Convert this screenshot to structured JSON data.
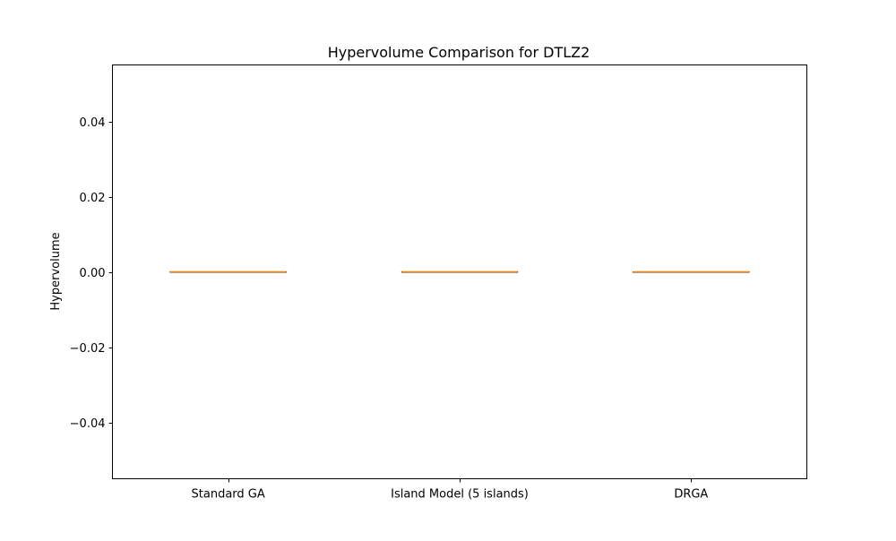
{
  "chart_data": {
    "type": "box",
    "title": "Hypervolume Comparison for DTLZ2",
    "xlabel": "",
    "ylabel": "Hypervolume",
    "ylim": [
      -0.055,
      0.055
    ],
    "yticks": [
      -0.04,
      -0.02,
      0.0,
      0.02,
      0.04
    ],
    "ytick_labels": [
      "−0.04",
      "−0.02",
      "0.00",
      "0.02",
      "0.04"
    ],
    "categories": [
      "Standard GA",
      "Island Model (5 islands)",
      "DRGA"
    ],
    "boxes": [
      {
        "category": "Standard GA",
        "min": 0.0,
        "q1": 0.0,
        "median": 0.0,
        "q3": 0.0,
        "max": 0.0
      },
      {
        "category": "Island Model (5 islands)",
        "min": 0.0,
        "q1": 0.0,
        "median": 0.0,
        "q3": 0.0,
        "max": 0.0
      },
      {
        "category": "DRGA",
        "min": 0.0,
        "q1": 0.0,
        "median": 0.0,
        "q3": 0.0,
        "max": 0.0
      }
    ],
    "grid": false,
    "colors": {
      "box": "#000000",
      "median": "#ff7f0e"
    }
  }
}
